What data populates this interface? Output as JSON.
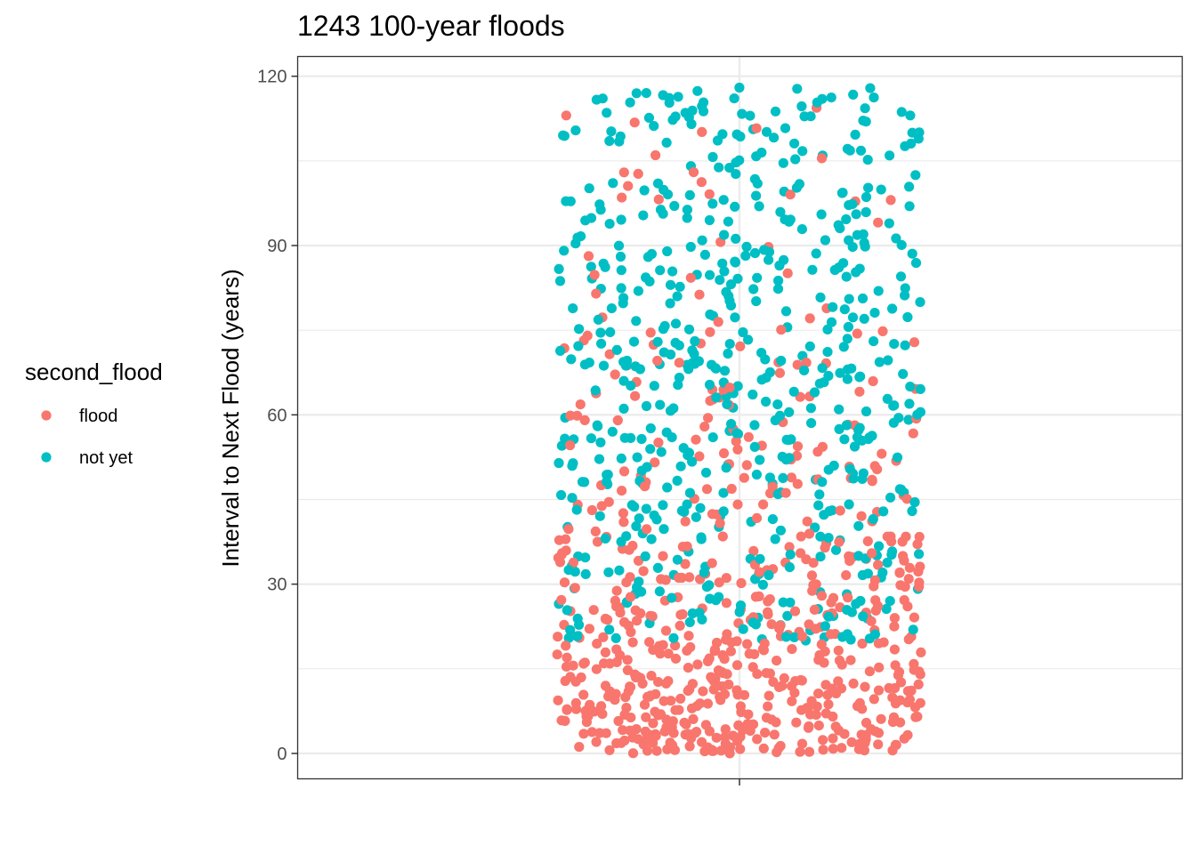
{
  "chart_data": {
    "type": "scatter",
    "title": "1243 100-year floods",
    "xlabel": "",
    "ylabel": "Interval to Next Flood (years)",
    "ylim": [
      -4.5,
      123.5
    ],
    "yticks": [
      0,
      30,
      60,
      90,
      120
    ],
    "grid": true,
    "jitter": true,
    "point_count": 1243,
    "legend": {
      "title": "second_flood",
      "placement": "left",
      "entries": [
        {
          "label": "flood",
          "color": "#F8766D"
        },
        {
          "label": "not yet",
          "color": "#00BFC4"
        }
      ]
    },
    "series": [
      {
        "name": "flood",
        "color": "#F8766D",
        "count": 641,
        "y_distribution": {
          "type": "exponential",
          "mean": 30,
          "max": 115
        }
      },
      {
        "name": "not yet",
        "color": "#00BFC4",
        "count": 602,
        "y_distribution": {
          "type": "uniform",
          "min": 20,
          "max": 118
        }
      }
    ]
  }
}
